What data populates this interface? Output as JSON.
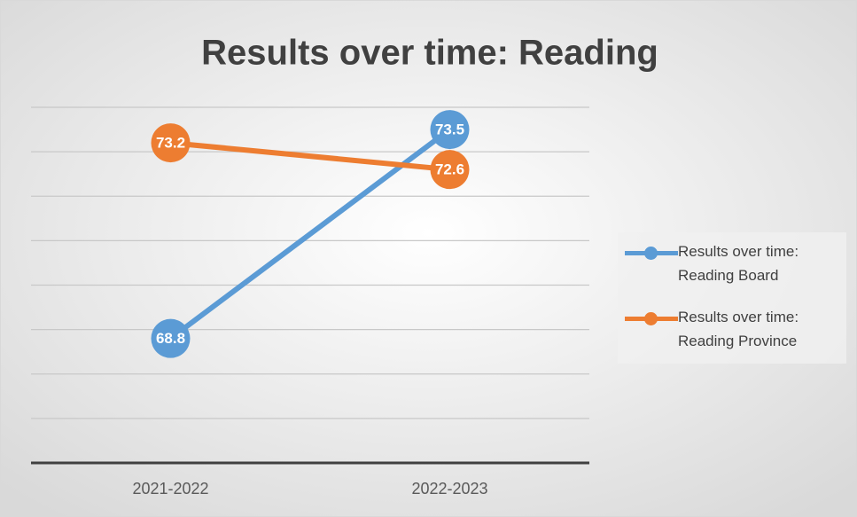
{
  "chart_data": {
    "type": "line",
    "title": "Results over time: Reading",
    "categories": [
      "2021-2022",
      "2022-2023"
    ],
    "series": [
      {
        "name": "Results over time: Reading Board",
        "color": "#5b9bd5",
        "values": [
          68.8,
          73.5
        ]
      },
      {
        "name": "Results over time: Reading Province",
        "color": "#ed7d31",
        "values": [
          73.2,
          72.6
        ]
      }
    ],
    "ylim": [
      66,
      74
    ],
    "yticks": [
      66,
      67,
      68,
      69,
      70,
      71,
      72,
      73,
      74
    ],
    "grid": true,
    "legend": "right"
  }
}
